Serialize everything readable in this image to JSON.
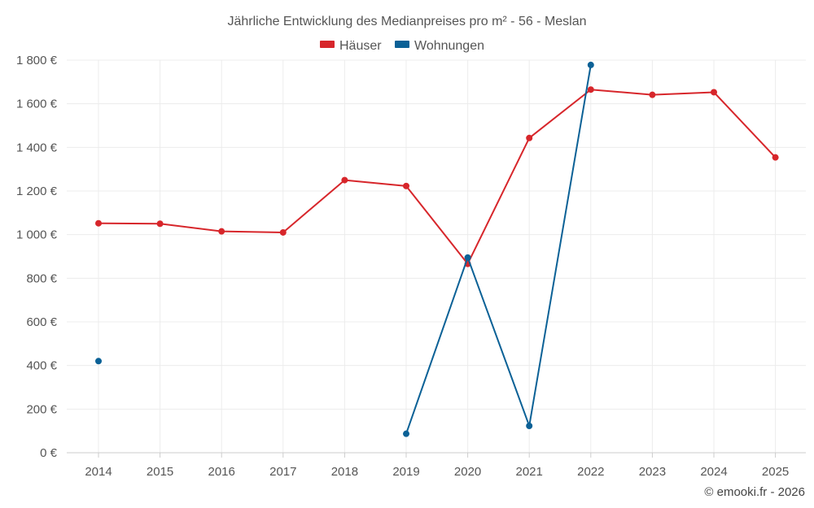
{
  "chart_data": {
    "type": "line",
    "title": "Jährliche Entwicklung des Medianpreises pro m² - 56 - Meslan",
    "categories": [
      "2014",
      "2015",
      "2016",
      "2017",
      "2018",
      "2019",
      "2020",
      "2021",
      "2022",
      "2023",
      "2024",
      "2025"
    ],
    "series": [
      {
        "name": "Häuser",
        "color": "#d7262b",
        "values": [
          1052,
          1050,
          1015,
          1010,
          1250,
          1223,
          866,
          1443,
          1665,
          1641,
          1653,
          1354
        ]
      },
      {
        "name": "Wohnungen",
        "color": "#0b6196",
        "values": [
          420,
          null,
          null,
          null,
          null,
          87,
          895,
          123,
          1778,
          null,
          null,
          null
        ]
      }
    ],
    "ylim": [
      0,
      1800
    ],
    "y_ticks": [
      0,
      200,
      400,
      600,
      800,
      1000,
      1200,
      1400,
      1600,
      1800
    ],
    "y_tick_labels": [
      "0 €",
      "200 €",
      "400 €",
      "600 €",
      "800 €",
      "1 000 €",
      "1 200 €",
      "1 400 €",
      "1 600 €",
      "1 800 €"
    ],
    "legend_position": "top-center",
    "grid": true
  },
  "credit": "© emooki.fr - 2026"
}
